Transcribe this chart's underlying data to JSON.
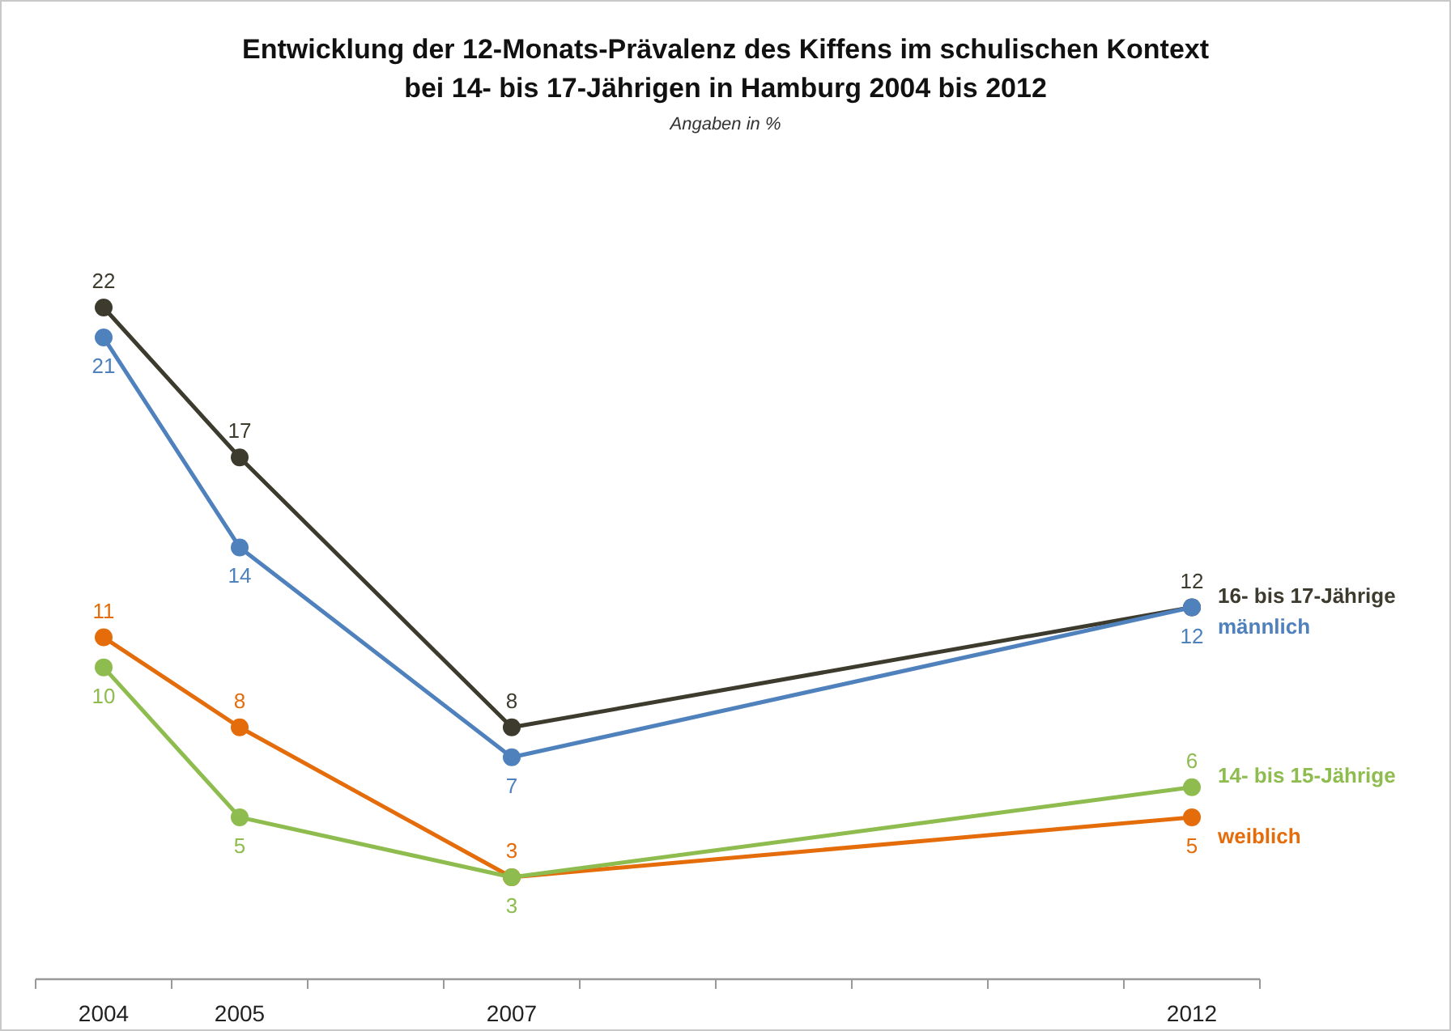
{
  "chart_data": {
    "type": "line",
    "title": "Entwicklung der 12-Monats-Prävalenz des Kiffens im schulischen Kontext\nbei 14- bis 17-Jährigen in Hamburg 2004 bis 2012",
    "subtitle": "Angaben in %",
    "x": [
      2004,
      2005,
      2007,
      2012
    ],
    "series": [
      {
        "name": "16- bis 17-Jährige",
        "color": "#3d3b2e",
        "values": [
          22,
          17,
          8,
          12
        ]
      },
      {
        "name": "männlich",
        "color": "#4f81bd",
        "values": [
          21,
          14,
          7,
          12
        ]
      },
      {
        "name": "weiblich",
        "color": "#e46c0a",
        "values": [
          11,
          8,
          3,
          5
        ]
      },
      {
        "name": "14- bis 15-Jährige",
        "color": "#8fbc4f",
        "values": [
          10,
          5,
          3,
          6
        ]
      }
    ],
    "xlim": [
      2003.5,
      2012.5
    ],
    "xticks": [
      {
        "value": 2003.5,
        "label": null
      },
      2004,
      {
        "value": 2004.5,
        "label": null
      },
      2005,
      {
        "value": 2005.5,
        "label": null
      },
      {
        "value": 2006.5,
        "label": null
      },
      2007,
      {
        "value": 2007.5,
        "label": null
      },
      {
        "value": 2008.5,
        "label": null
      },
      {
        "value": 2009.5,
        "label": null
      },
      {
        "value": 2010.5,
        "label": null
      },
      {
        "value": 2011.5,
        "label": null
      },
      2012,
      {
        "value": 2012.5,
        "label": null
      }
    ],
    "tick_labels": "x",
    "marker": "circle",
    "line_style": "solid",
    "data_labels": true
  }
}
